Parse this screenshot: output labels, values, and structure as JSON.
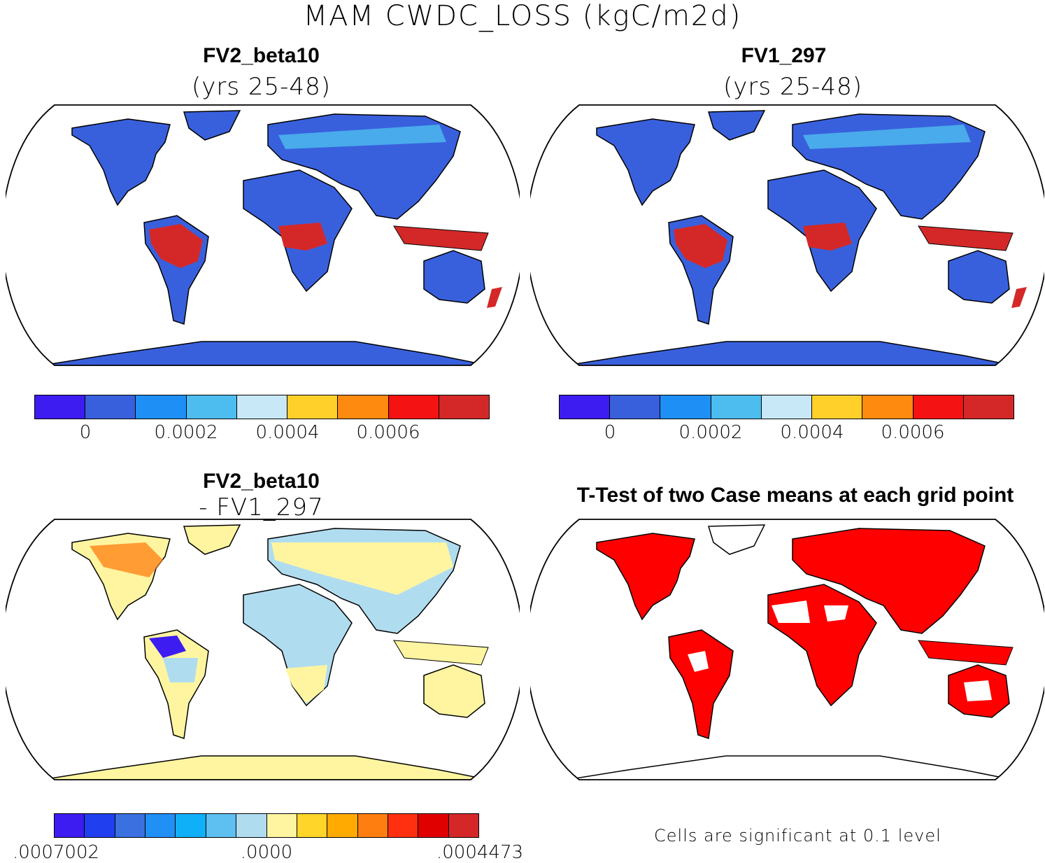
{
  "title": "MAM CWDC_LOSS (kgC/m2d)",
  "panels": [
    {
      "title": "FV2_beta10",
      "subtitle": "(yrs 25-48)"
    },
    {
      "title": "FV1_297",
      "subtitle": "(yrs 25-48)"
    },
    {
      "title": "FV2_beta10",
      "subtitle": "- FV1_297"
    },
    {
      "title": "T-Test of two Case means at each grid point",
      "subtitle": ""
    }
  ],
  "colorbar_top": {
    "colors": [
      "#3c1cf0",
      "#3960dc",
      "#1e8ff5",
      "#4dbdf0",
      "#c8e8f8",
      "#ffd02a",
      "#ff8a10",
      "#f41212",
      "#d42828"
    ],
    "labels": [
      "0",
      "0.0002",
      "0.0004",
      "0.0006"
    ]
  },
  "colorbar_diff": {
    "colors": [
      "#3c1cf0",
      "#2040f0",
      "#3a70e0",
      "#2090f5",
      "#10b0f8",
      "#5ec0f0",
      "#b0dcf0",
      "#fff5a0",
      "#ffd52a",
      "#ffaa00",
      "#ff7e10",
      "#ff3010",
      "#e00000",
      "#d42828"
    ],
    "labels": [
      ".0007002",
      ".0000",
      ".0004473"
    ]
  },
  "footnote": "Cells are significant at 0.1 level",
  "map_colors": {
    "ocean": "#ffffff",
    "land_base": "#3960dc",
    "tropic_high": "#d42828",
    "boreal_mid": "#4dbdf0",
    "diff_base": "#fff5a0",
    "diff_neg": "#b0dcf0",
    "ttest_sig": "#ff0000"
  }
}
